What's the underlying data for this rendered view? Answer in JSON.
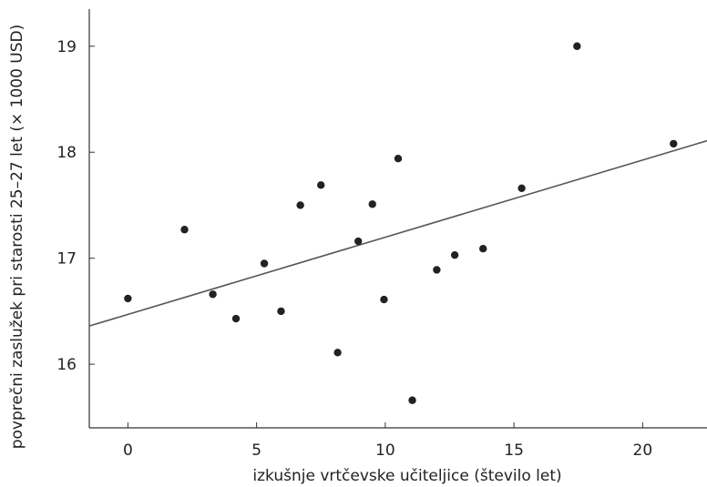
{
  "chart_data": {
    "type": "scatter",
    "title": "",
    "xlabel": "izkušnje vrtčevske učiteljice (število let)",
    "ylabel": "povprečni zaslužek pri starosti 25–27 let (× 1000 USD)",
    "xlim": [
      -1.5,
      22.5
    ],
    "ylim": [
      15.4,
      19.35
    ],
    "x_ticks": [
      0,
      5,
      10,
      15,
      20
    ],
    "y_ticks": [
      16,
      17,
      18,
      19
    ],
    "grid": false,
    "legend": "none",
    "series": [
      {
        "points": [
          {
            "x": 0,
            "y": 16.62
          },
          {
            "x": 2.2,
            "y": 17.27
          },
          {
            "x": 3.3,
            "y": 16.66
          },
          {
            "x": 4.2,
            "y": 16.43
          },
          {
            "x": 5.3,
            "y": 16.95
          },
          {
            "x": 5.95,
            "y": 16.5
          },
          {
            "x": 6.7,
            "y": 17.5
          },
          {
            "x": 7.5,
            "y": 17.69
          },
          {
            "x": 8.15,
            "y": 16.11
          },
          {
            "x": 8.95,
            "y": 17.16
          },
          {
            "x": 9.5,
            "y": 17.51
          },
          {
            "x": 9.95,
            "y": 16.61
          },
          {
            "x": 10.5,
            "y": 17.94
          },
          {
            "x": 11.05,
            "y": 15.66
          },
          {
            "x": 12.0,
            "y": 16.89
          },
          {
            "x": 12.7,
            "y": 17.03
          },
          {
            "x": 13.8,
            "y": 17.09
          },
          {
            "x": 15.3,
            "y": 17.66
          },
          {
            "x": 17.45,
            "y": 19.0
          },
          {
            "x": 21.2,
            "y": 18.08
          }
        ]
      }
    ],
    "trendline": {
      "type": "linear",
      "intercept": 16.47,
      "slope": 0.0728
    }
  }
}
